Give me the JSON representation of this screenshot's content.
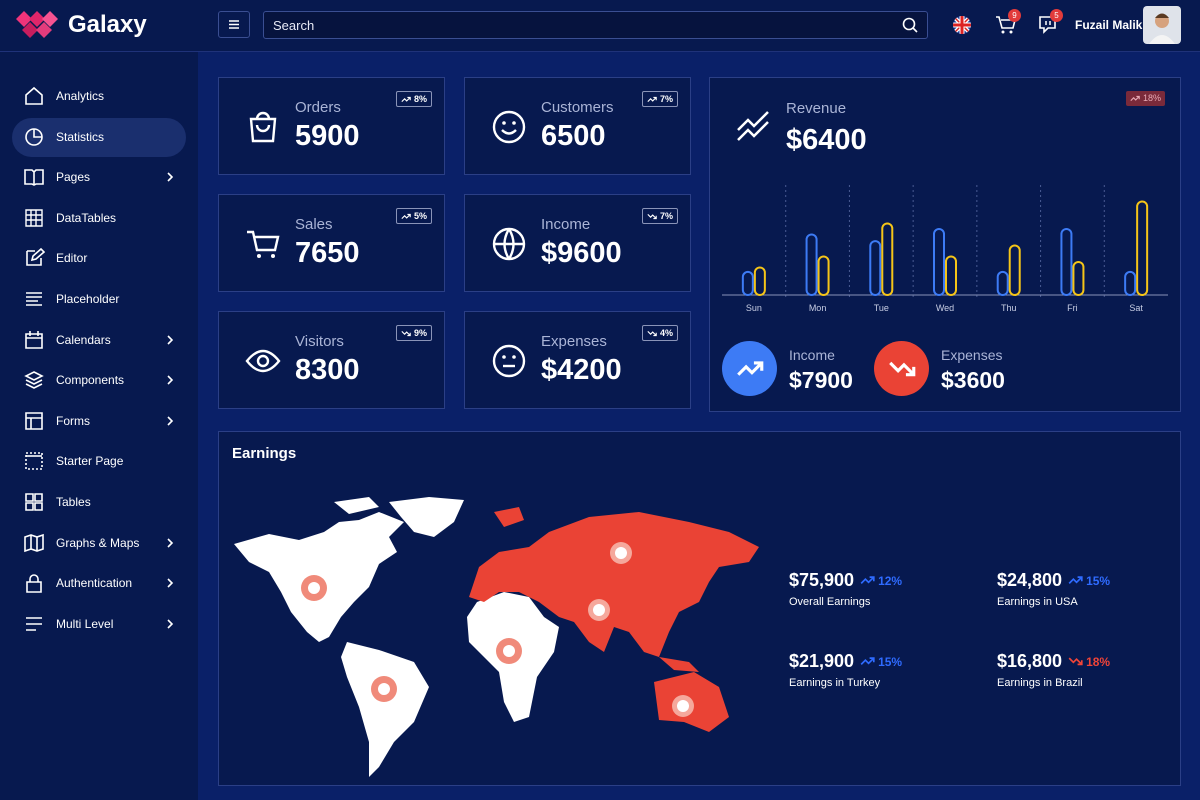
{
  "brand": "Galaxy",
  "header": {
    "search_placeholder": "Search",
    "cart_badge": 9,
    "messages_badge": 5,
    "user_name": "Fuzail Malik"
  },
  "sidebar": {
    "items": [
      {
        "label": "Analytics",
        "submenu": false
      },
      {
        "label": "Statistics",
        "submenu": false,
        "active": true
      },
      {
        "label": "Pages",
        "submenu": true
      },
      {
        "label": "DataTables",
        "submenu": false
      },
      {
        "label": "Editor",
        "submenu": false
      },
      {
        "label": "Placeholder",
        "submenu": false
      },
      {
        "label": "Calendars",
        "submenu": true
      },
      {
        "label": "Components",
        "submenu": true
      },
      {
        "label": "Forms",
        "submenu": true
      },
      {
        "label": "Starter Page",
        "submenu": false
      },
      {
        "label": "Tables",
        "submenu": false
      },
      {
        "label": "Graphs & Maps",
        "submenu": true
      },
      {
        "label": "Authentication",
        "submenu": true
      },
      {
        "label": "Multi Level",
        "submenu": true
      }
    ]
  },
  "stats": [
    {
      "label": "Orders",
      "value": "5900",
      "change": "8%",
      "trend": "up"
    },
    {
      "label": "Customers",
      "value": "6500",
      "change": "7%",
      "trend": "up"
    },
    {
      "label": "Sales",
      "value": "7650",
      "change": "5%",
      "trend": "up"
    },
    {
      "label": "Income",
      "value": "$9600",
      "change": "7%",
      "trend": "down"
    },
    {
      "label": "Visitors",
      "value": "8300",
      "change": "9%",
      "trend": "down"
    },
    {
      "label": "Expenses",
      "value": "$4200",
      "change": "4%",
      "trend": "down"
    }
  ],
  "revenue": {
    "label": "Revenue",
    "value": "$6400",
    "change": "18%",
    "trend": "up"
  },
  "chart_data": {
    "type": "bar",
    "categories": [
      "Sun",
      "Mon",
      "Tue",
      "Wed",
      "Thu",
      "Fri",
      "Sat"
    ],
    "series": [
      {
        "name": "Income",
        "color": "#3d7bf5",
        "values": [
          21,
          55,
          49,
          60,
          21,
          60,
          21
        ]
      },
      {
        "name": "Expenses",
        "color": "#f5c518",
        "values": [
          25,
          35,
          65,
          35,
          45,
          30,
          85
        ]
      }
    ],
    "ylim": [
      0,
      100
    ]
  },
  "summary": [
    {
      "value": "$7900",
      "trend": "up"
    },
    {
      "value": "$3600",
      "trend": "down"
    }
  ],
  "earnings": {
    "title": "Earnings",
    "items": [
      {
        "value": "$75,900",
        "change": "12%",
        "trend": "up",
        "label": "Overall Earnings"
      },
      {
        "value": "$24,800",
        "change": "15%",
        "trend": "up",
        "label": "Earnings in USA"
      },
      {
        "value": "$21,900",
        "change": "15%",
        "trend": "up",
        "label": "Earnings in Turkey"
      },
      {
        "value": "$16,800",
        "change": "18%",
        "trend": "down",
        "label": "Earnings in Brazil"
      }
    ]
  }
}
